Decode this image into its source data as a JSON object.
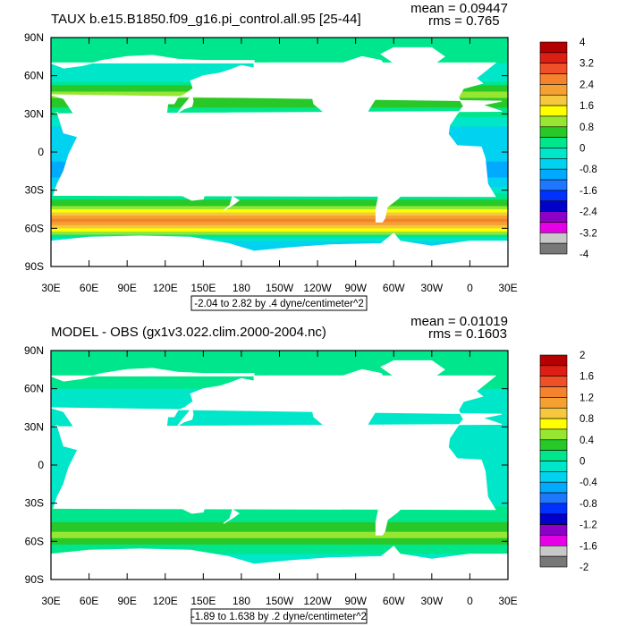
{
  "chart_data": [
    {
      "type": "heatmap",
      "title": "TAUX b.e15.B1850.f09_g16.pi_control.all.95 [25-44]",
      "stats": {
        "mean": "mean = 0.09447",
        "rms": "rms = 0.765"
      },
      "range_label": "-2.04 to 2.82 by .4 dyne/centimeter^2",
      "y_ticks": [
        "90N",
        "60N",
        "30N",
        "0",
        "30S",
        "60S",
        "90S"
      ],
      "x_ticks": [
        "30E",
        "60E",
        "90E",
        "120E",
        "150E",
        "180",
        "150W",
        "120W",
        "90W",
        "60W",
        "30W",
        "0",
        "30E"
      ],
      "xlim": [
        30,
        390
      ],
      "ylim": [
        -90,
        90
      ],
      "colorbar": {
        "labels": [
          "4",
          "3.2",
          "2.4",
          "1.6",
          "0.8",
          "0",
          "-0.8",
          "-1.6",
          "-2.4",
          "-3.2",
          "-4"
        ],
        "colors": [
          "#B40000",
          "#DC1E14",
          "#F05028",
          "#F5822D",
          "#F5A032",
          "#F5C840",
          "#FFFF00",
          "#96E632",
          "#28C828",
          "#00E68C",
          "#00E6C8",
          "#00D2F0",
          "#00AAFF",
          "#1E78FF",
          "#0032FF",
          "#0000C8",
          "#8C00C8",
          "#E600E6",
          "#C8C8C8",
          "#787878"
        ]
      },
      "zones": [
        {
          "lat": 90,
          "value": 0.2
        },
        {
          "lat": 75,
          "value": 0.2
        },
        {
          "lat": 60,
          "value": -0.4
        },
        {
          "lat": 45,
          "value": 1.0
        },
        {
          "lat": 30,
          "value": 0.2
        },
        {
          "lat": 15,
          "value": -0.6
        },
        {
          "lat": 0,
          "value": -0.6
        },
        {
          "lat": -15,
          "value": -1.0
        },
        {
          "lat": -30,
          "value": -0.2
        },
        {
          "lat": -40,
          "value": 0.6
        },
        {
          "lat": -50,
          "value": 2.2
        },
        {
          "lat": -55,
          "value": 2.6
        },
        {
          "lat": -65,
          "value": 0.6
        },
        {
          "lat": -72,
          "value": -0.6
        },
        {
          "lat": -90,
          "value": -0.6
        }
      ]
    },
    {
      "type": "heatmap",
      "title": "MODEL - OBS (gx1v3.022.clim.2000-2004.nc)",
      "stats": {
        "mean": "mean = 0.01019",
        "rms": "rms = 0.1603"
      },
      "range_label": "-1.89 to 1.638 by .2 dyne/centimeter^2",
      "y_ticks": [
        "90N",
        "60N",
        "30N",
        "0",
        "30S",
        "60S",
        "90S"
      ],
      "x_ticks": [
        "30E",
        "60E",
        "90E",
        "120E",
        "150E",
        "180",
        "150W",
        "120W",
        "90W",
        "60W",
        "30W",
        "0",
        "30E"
      ],
      "xlim": [
        30,
        390
      ],
      "ylim": [
        -90,
        90
      ],
      "colorbar": {
        "labels": [
          "2",
          "1.6",
          "1.2",
          "0.8",
          "0.4",
          "0",
          "-0.4",
          "-0.8",
          "-1.2",
          "-1.6",
          "-2"
        ],
        "colors": [
          "#B40000",
          "#DC1E14",
          "#F05028",
          "#F5822D",
          "#F5A032",
          "#F5C840",
          "#FFFF00",
          "#96E632",
          "#28C828",
          "#00E68C",
          "#00E6C8",
          "#00D2F0",
          "#00AAFF",
          "#1E78FF",
          "#0032FF",
          "#0000C8",
          "#8C00C8",
          "#E600E6",
          "#C8C8C8",
          "#787878"
        ]
      },
      "zones": [
        {
          "lat": 90,
          "value": 0.0
        },
        {
          "lat": 80,
          "value": 0.1
        },
        {
          "lat": 60,
          "value": 0.0
        },
        {
          "lat": 40,
          "value": -0.05
        },
        {
          "lat": 20,
          "value": -0.1
        },
        {
          "lat": 0,
          "value": -0.15
        },
        {
          "lat": -20,
          "value": -0.1
        },
        {
          "lat": -40,
          "value": 0.05
        },
        {
          "lat": -50,
          "value": 0.3
        },
        {
          "lat": -55,
          "value": 0.5
        },
        {
          "lat": -65,
          "value": 0.1
        },
        {
          "lat": -75,
          "value": -0.1
        },
        {
          "lat": -90,
          "value": -0.1
        }
      ]
    }
  ]
}
